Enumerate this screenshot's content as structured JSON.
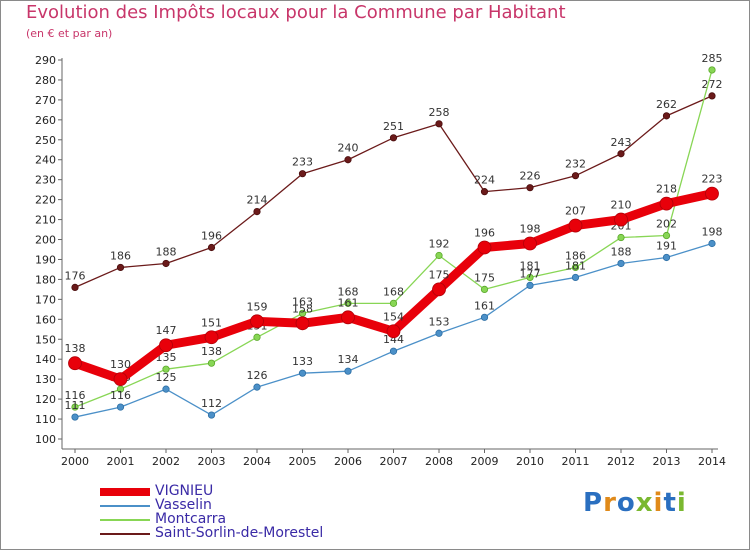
{
  "chart_data": {
    "type": "line",
    "title": "Evolution des Impôts locaux pour la Commune par Habitant",
    "subtitle": "(en € et par an)",
    "x": [
      "2000",
      "2001",
      "2002",
      "2003",
      "2004",
      "2005",
      "2006",
      "2007",
      "2008",
      "2009",
      "2010",
      "2011",
      "2012",
      "2013",
      "2014"
    ],
    "ylim": [
      100,
      290
    ],
    "yticks": [
      100,
      110,
      120,
      130,
      140,
      150,
      160,
      170,
      180,
      190,
      200,
      210,
      220,
      230,
      240,
      250,
      260,
      270,
      280,
      290
    ],
    "grid": false,
    "legend_position": "bottom-left",
    "series": [
      {
        "name": "VIGNIEU",
        "color": "#e8000a",
        "values": [
          138,
          130,
          147,
          151,
          159,
          158,
          161,
          154,
          175,
          196,
          198,
          207,
          210,
          218,
          223
        ]
      },
      {
        "name": "Vasselin",
        "color": "#4b90c8",
        "values": [
          111,
          116,
          125,
          112,
          126,
          133,
          134,
          144,
          153,
          161,
          177,
          181,
          188,
          191,
          198
        ]
      },
      {
        "name": "Montcarra",
        "color": "#88d655",
        "values": [
          116,
          125,
          135,
          138,
          151,
          163,
          168,
          168,
          192,
          175,
          181,
          186,
          201,
          202,
          285
        ]
      },
      {
        "name": "Saint-Sorlin-de-Morestel",
        "color": "#6b1a1a",
        "values": [
          176,
          186,
          188,
          196,
          214,
          233,
          240,
          251,
          258,
          224,
          226,
          232,
          243,
          262,
          272
        ]
      }
    ]
  },
  "logo": {
    "text": "Proxiti",
    "colors": [
      "#2a6fc0",
      "#e08a1a",
      "#2a6fc0",
      "#7ab830",
      "#e08a1a",
      "#2a6fc0",
      "#7ab830"
    ]
  }
}
